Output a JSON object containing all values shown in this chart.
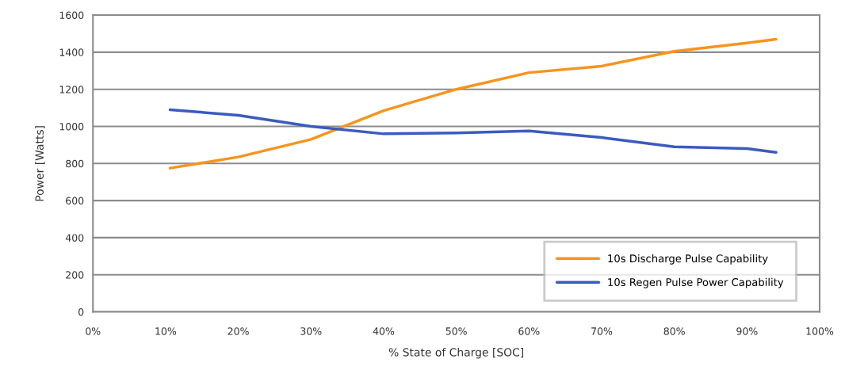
{
  "chart_data": {
    "type": "line",
    "xlabel": "% State of Charge [SOC]",
    "ylabel": "Power [Watts]",
    "xlim": [
      0,
      100
    ],
    "xticks": [
      {
        "value": 0,
        "label": "0%"
      },
      {
        "value": 10,
        "label": "10%"
      },
      {
        "value": 20,
        "label": "20%"
      },
      {
        "value": 30,
        "label": "30%"
      },
      {
        "value": 40,
        "label": "40%"
      },
      {
        "value": 50,
        "label": "50%"
      },
      {
        "value": 60,
        "label": "60%"
      },
      {
        "value": 70,
        "label": "70%"
      },
      {
        "value": 80,
        "label": "80%"
      },
      {
        "value": 90,
        "label": "90%"
      },
      {
        "value": 100,
        "label": "100%"
      }
    ],
    "ylim": [
      0,
      1600
    ],
    "yticks": [
      0,
      200,
      400,
      600,
      800,
      1000,
      1200,
      1400,
      1600
    ],
    "x": [
      10.6,
      20,
      30,
      40,
      50,
      60,
      70,
      80,
      90,
      94
    ],
    "series": [
      {
        "name": "10s Discharge Pulse Capability",
        "color": "#f7941d",
        "values": [
          775,
          835,
          930,
          1085,
          1200,
          1290,
          1325,
          1405,
          1450,
          1470
        ]
      },
      {
        "name": "10s Regen Pulse Power Capability",
        "color": "#3a5bbf",
        "values": [
          1090,
          1060,
          1000,
          960,
          965,
          975,
          940,
          890,
          880,
          860
        ]
      }
    ],
    "grid": "y",
    "legend": "bottom right",
    "marker": "none",
    "line_style": "solid"
  }
}
